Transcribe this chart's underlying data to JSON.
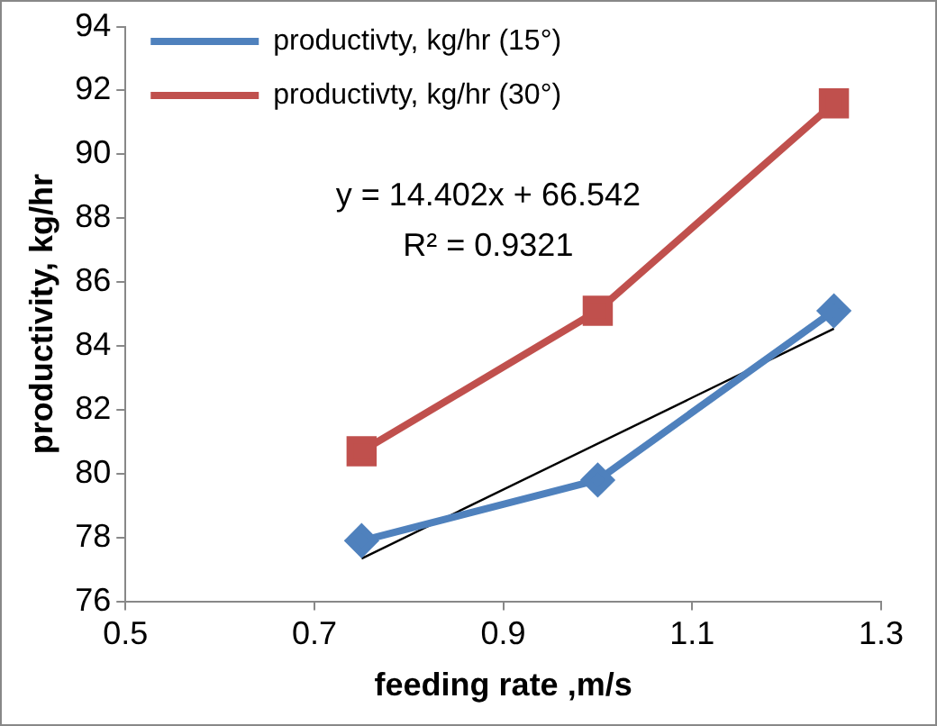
{
  "chart_data": {
    "type": "line",
    "xlabel": "feeding rate ,m/s",
    "ylabel": "productivity, kg/hr",
    "xlim": [
      0.5,
      1.3
    ],
    "xticks": [
      0.5,
      0.7,
      0.9,
      1.1,
      1.3
    ],
    "ylim": [
      76,
      94
    ],
    "yticks": [
      76,
      78,
      80,
      82,
      84,
      86,
      88,
      90,
      92,
      94
    ],
    "grid": false,
    "legend": "top left",
    "line_style": "solid",
    "series": [
      {
        "name": "productivty, kg/hr (15°)",
        "color": "#4f81bd",
        "marker": "diamond",
        "x": [
          0.75,
          1.0,
          1.25
        ],
        "values": [
          77.9,
          79.8,
          85.1
        ]
      },
      {
        "name": "productivty, kg/hr (30°)",
        "color": "#c0504d",
        "marker": "square",
        "x": [
          0.75,
          1.0,
          1.25
        ],
        "values": [
          80.7,
          85.1,
          91.6
        ]
      },
      {
        "color": "#000000",
        "marker": "none",
        "x": [
          0.75,
          1.25
        ],
        "values": [
          77.34,
          84.54
        ]
      }
    ],
    "annotations": [
      "y = 14.402x + 66.542",
      "R² = 0.9321"
    ]
  }
}
